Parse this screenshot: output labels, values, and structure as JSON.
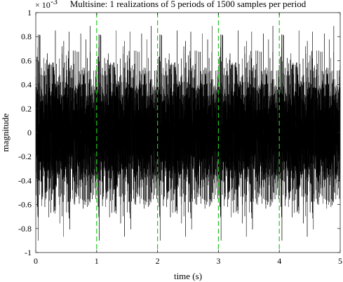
{
  "chart_data": {
    "type": "line",
    "title": "Multisine: 1 realizations of 5 periods of 1500 samples per period",
    "xlabel": "time (s)",
    "ylabel": "magnitude",
    "exponent_label": "× 10",
    "exponent_power": "-3",
    "xlim": [
      0,
      5
    ],
    "ylim": [
      -1,
      1
    ],
    "xticks": [
      0,
      1,
      2,
      3,
      4,
      5
    ],
    "xtick_labels": [
      "0",
      "1",
      "2",
      "3",
      "4",
      "5"
    ],
    "yticks": [
      -1,
      -0.8,
      -0.6,
      -0.4,
      -0.2,
      0,
      0.2,
      0.4,
      0.6,
      0.8,
      1
    ],
    "ytick_labels": [
      "-1",
      "-0.8",
      "-0.6",
      "-0.4",
      "-0.2",
      "0",
      "0.2",
      "0.4",
      "0.6",
      "0.8",
      "1"
    ],
    "period_boundaries": [
      1,
      2,
      3,
      4
    ],
    "periods": 5,
    "samples_per_period": 1500,
    "signal_peak": 0.9,
    "signal_color": "#000000",
    "boundary_color": "#1ec81e",
    "grid": false
  }
}
